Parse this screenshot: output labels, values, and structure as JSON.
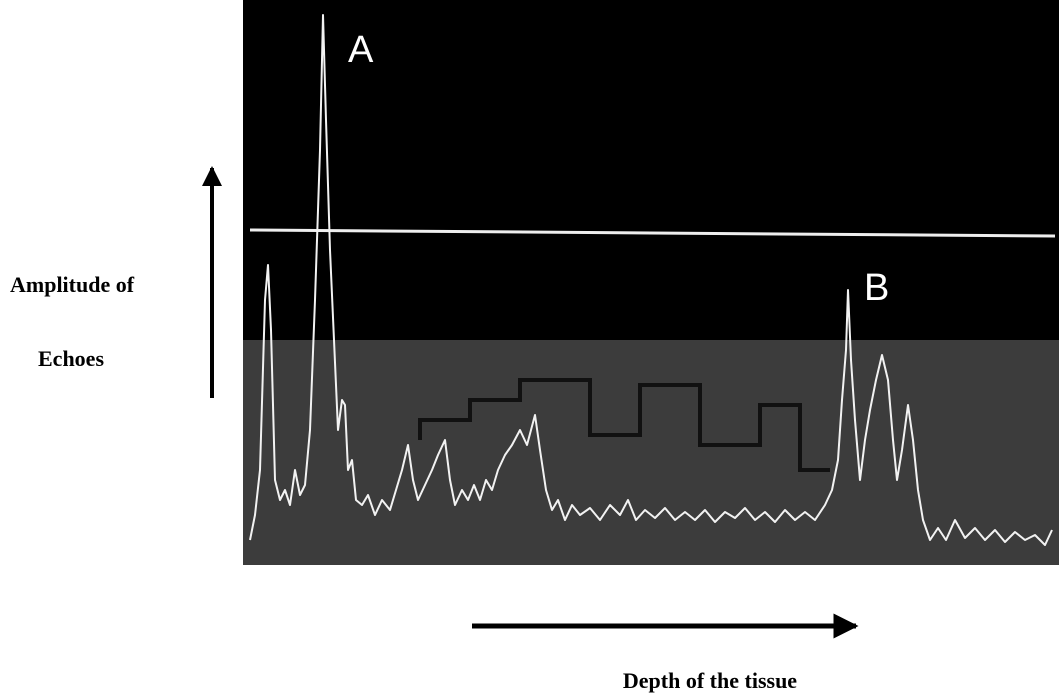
{
  "image": {
    "peak_labels": [
      "A",
      "B"
    ]
  },
  "y_axis": {
    "label_lines": [
      "Amplitude of",
      "Echoes"
    ]
  },
  "x_axis": {
    "label": "Depth of the tissue"
  }
}
